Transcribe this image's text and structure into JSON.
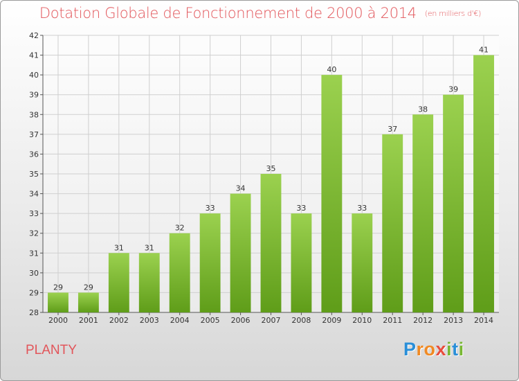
{
  "header": {
    "title": "Dotation Globale de Fonctionnement de 2000 à 2014",
    "unit_note": "(en milliers d'€)"
  },
  "footer": {
    "commune": "PLANTY",
    "logo_letters": [
      "P",
      "r",
      "o",
      "x",
      "i",
      "t",
      "i"
    ],
    "logo_colors": [
      "#2a8fd8",
      "#f08a24",
      "#f08a24",
      "#e84c3d",
      "#78b833",
      "#2a8fd8",
      "#78b833"
    ]
  },
  "colors": {
    "bar_top": "#9bd14f",
    "bar_bottom": "#5f9d19",
    "grid": "#cfcfcf",
    "title": "#e2555a"
  },
  "chart_data": {
    "type": "bar",
    "title": "Dotation Globale de Fonctionnement de 2000 à 2014",
    "subtitle": "(en milliers d'€)",
    "categories": [
      "2000",
      "2001",
      "2002",
      "2003",
      "2004",
      "2005",
      "2006",
      "2007",
      "2008",
      "2009",
      "2010",
      "2011",
      "2012",
      "2013",
      "2014"
    ],
    "values": [
      29,
      29,
      31,
      31,
      32,
      33,
      34,
      35,
      33,
      40,
      33,
      37,
      38,
      39,
      41
    ],
    "xlabel": "",
    "ylabel": "",
    "ylim": [
      28,
      42
    ],
    "yticks": [
      28,
      29,
      30,
      31,
      32,
      33,
      34,
      35,
      36,
      37,
      38,
      39,
      40,
      41,
      42
    ],
    "grid": true,
    "data_labels": true
  }
}
